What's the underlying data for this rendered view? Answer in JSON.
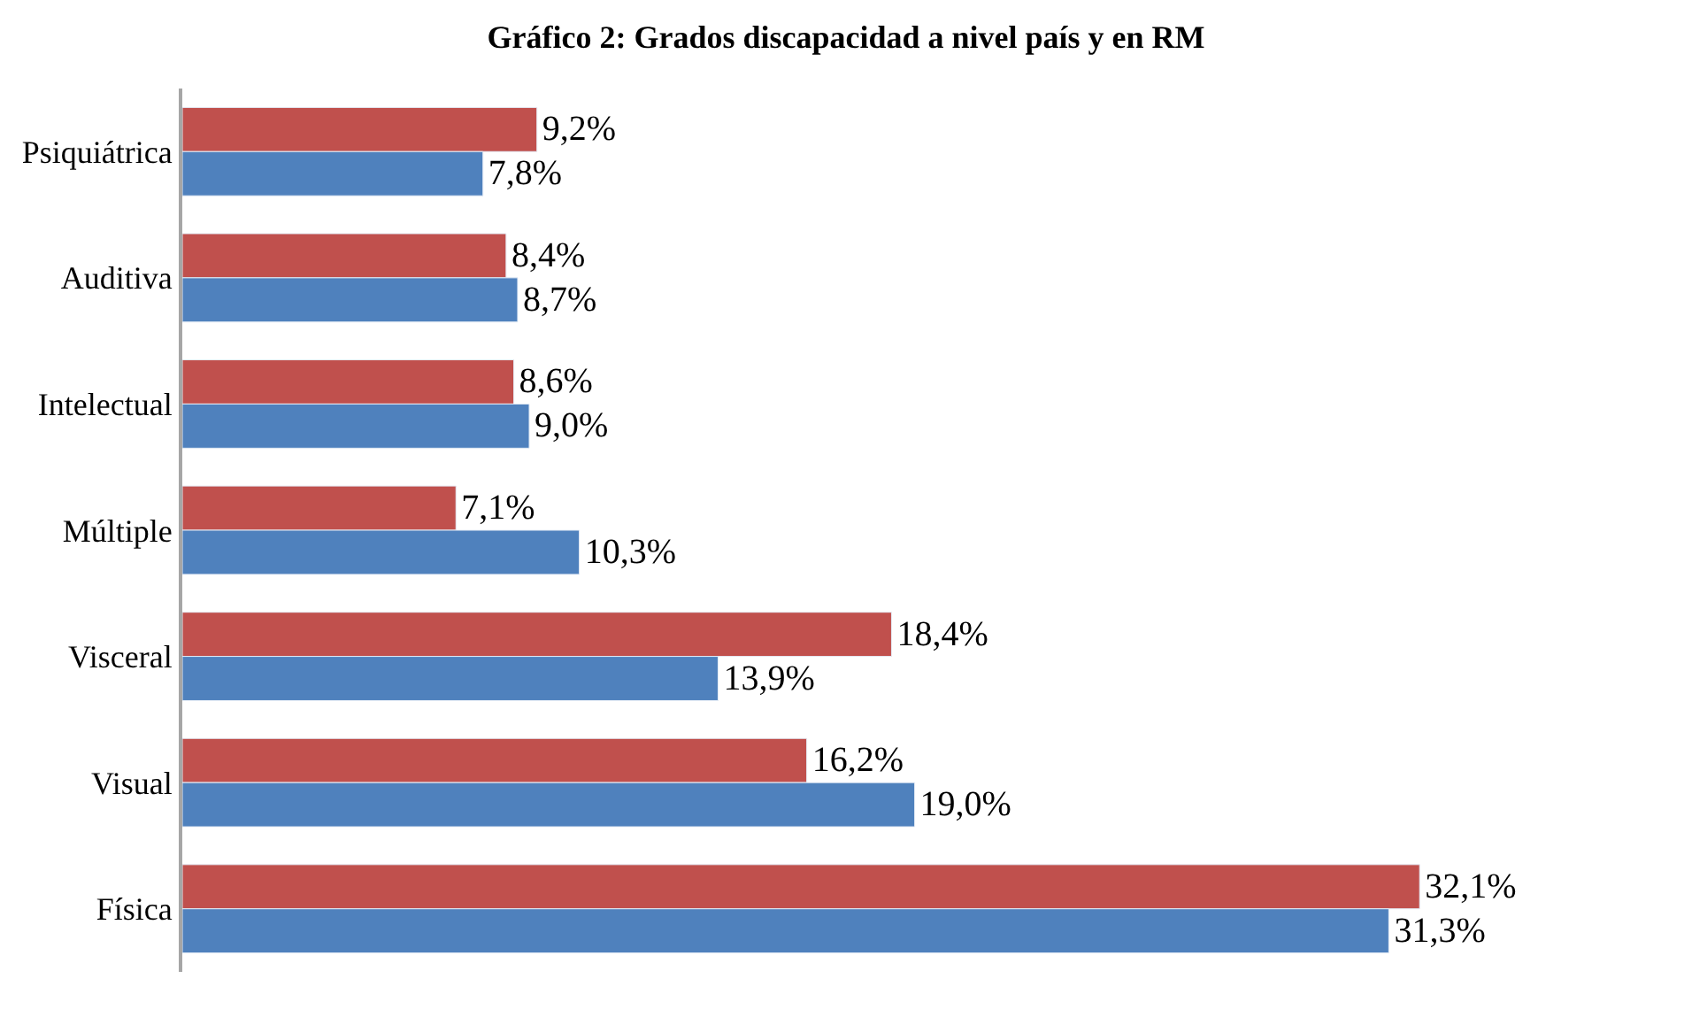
{
  "chart_data": {
    "type": "bar",
    "orientation": "horizontal",
    "title": "Gráfico 2: Grados discapacidad a nivel país y en RM",
    "categories": [
      "Psiquiátrica",
      "Auditiva",
      "Intelectual",
      "Múltiple",
      "Visceral",
      "Visual",
      "Física"
    ],
    "series": [
      {
        "color": "#c0504d",
        "values": [
          9.2,
          8.4,
          8.6,
          7.1,
          18.4,
          16.2,
          32.1
        ],
        "value_labels": [
          "9,2%",
          "8,4%",
          "8,6%",
          "7,1%",
          "18,4%",
          "16,2%",
          "32,1%"
        ]
      },
      {
        "color": "#4f81bd",
        "values": [
          7.8,
          8.7,
          9.0,
          10.3,
          13.9,
          19.0,
          31.3
        ],
        "value_labels": [
          "7,8%",
          "8,7%",
          "9,0%",
          "10,3%",
          "13,9%",
          "19,0%",
          "31,3%"
        ]
      }
    ]
  }
}
